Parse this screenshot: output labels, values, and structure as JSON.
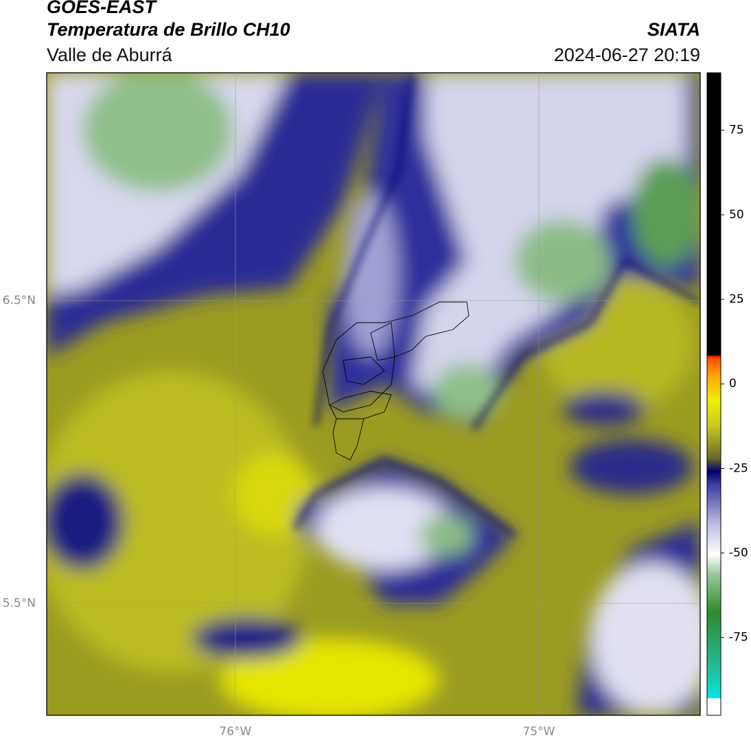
{
  "header": {
    "title": "GOES-EAST",
    "subtitle": "Temperatura de Brillo CH10",
    "region": "Valle de Aburrá",
    "agency": "SIATA",
    "datetime": "2024-06-27 20:19"
  },
  "map": {
    "lon_lim": [
      -76.622,
      -74.468
    ],
    "lat_lim": [
      5.13,
      7.253
    ],
    "lon_ticks": [
      {
        "value": -76,
        "label": "76°W"
      },
      {
        "value": -75,
        "label": "75°W"
      }
    ],
    "lat_ticks": [
      {
        "value": 6.5,
        "label": "6.5°N"
      },
      {
        "value": 5.5,
        "label": "5.5°N"
      }
    ]
  },
  "colorbar": {
    "lim": [
      -98,
      92
    ],
    "ticks": [
      75,
      50,
      25,
      0,
      -25,
      -50,
      -75
    ]
  }
}
